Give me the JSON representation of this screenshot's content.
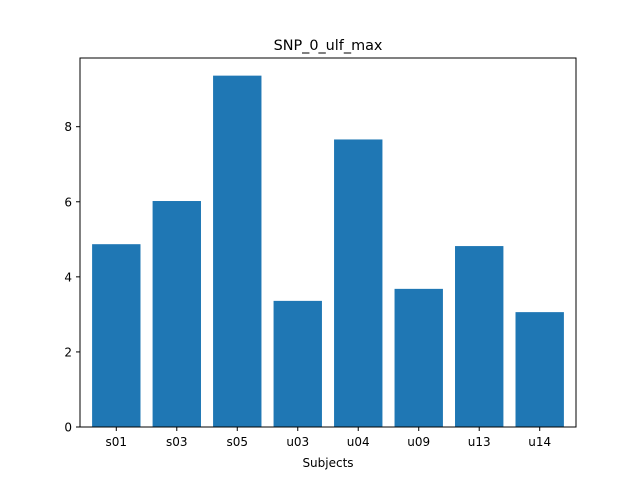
{
  "chart_data": {
    "type": "bar",
    "title": "SNP_0_ulf_max",
    "xlabel": "Subjects",
    "ylabel": "",
    "categories": [
      "s01",
      "s03",
      "s05",
      "u03",
      "u04",
      "u09",
      "u13",
      "u14"
    ],
    "values": [
      4.87,
      6.02,
      9.36,
      3.36,
      7.66,
      3.68,
      4.82,
      3.06
    ],
    "ylim": [
      0,
      9.83
    ],
    "yticks": [
      0,
      2,
      4,
      6,
      8
    ],
    "grid": false,
    "legend": "none",
    "bar_color": "#1f77b4"
  }
}
